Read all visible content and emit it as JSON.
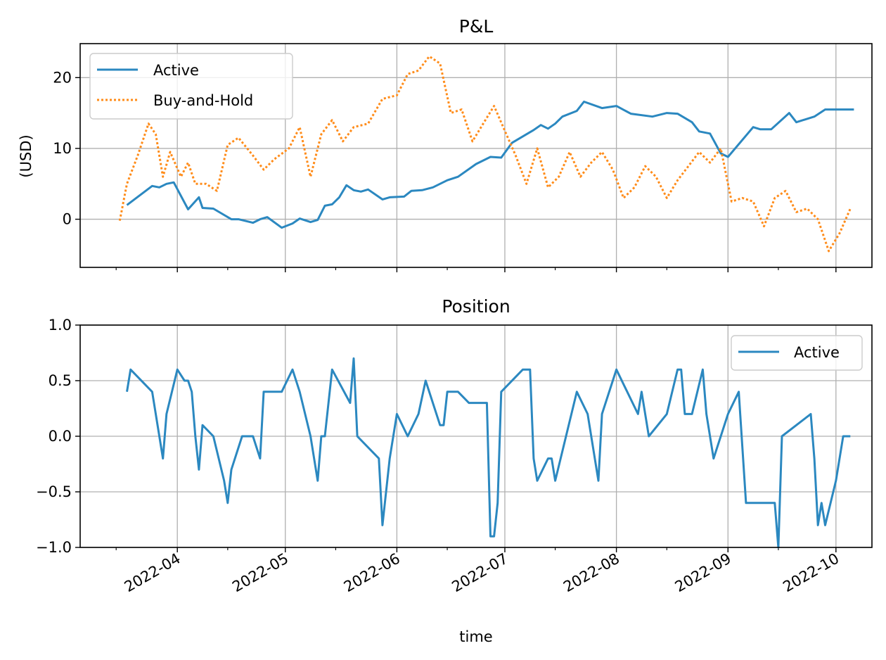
{
  "figure": {
    "xlabel": "time",
    "date_ticks": [
      "2022-04",
      "2022-05",
      "2022-06",
      "2022-07",
      "2022-08",
      "2022-09",
      "2022-10"
    ],
    "date_tick_values": [
      "2022-04-01",
      "2022-05-01",
      "2022-06-01",
      "2022-07-01",
      "2022-08-01",
      "2022-09-01",
      "2022-10-01"
    ]
  },
  "colors": {
    "active": "#2b88c0",
    "buy_and_hold": "#ff8c1a",
    "grid": "#b0b0b0"
  },
  "chart_data": [
    {
      "type": "line",
      "title": "P&L",
      "ylabel": "(USD)",
      "xlim": [
        "2022-03-05",
        "2022-10-11"
      ],
      "ylim": [
        -6.8,
        24.8
      ],
      "yticks": [
        0,
        10,
        20
      ],
      "ytick_labels": [
        "0",
        "10",
        "20"
      ],
      "grid": true,
      "legend": "upper left",
      "series": [
        {
          "name": "Active",
          "style": "solid",
          "x": [
            "2022-03-18",
            "2022-03-25",
            "2022-03-27",
            "2022-03-29",
            "2022-03-31",
            "2022-04-04",
            "2022-04-07",
            "2022-04-08",
            "2022-04-11",
            "2022-04-14",
            "2022-04-16",
            "2022-04-18",
            "2022-04-22",
            "2022-04-24",
            "2022-04-26",
            "2022-04-30",
            "2022-05-03",
            "2022-05-05",
            "2022-05-08",
            "2022-05-10",
            "2022-05-12",
            "2022-05-14",
            "2022-05-16",
            "2022-05-18",
            "2022-05-20",
            "2022-05-22",
            "2022-05-24",
            "2022-05-28",
            "2022-05-30",
            "2022-06-03",
            "2022-06-05",
            "2022-06-08",
            "2022-06-11",
            "2022-06-15",
            "2022-06-18",
            "2022-06-23",
            "2022-06-27",
            "2022-06-30",
            "2022-07-03",
            "2022-07-07",
            "2022-07-09",
            "2022-07-11",
            "2022-07-13",
            "2022-07-15",
            "2022-07-17",
            "2022-07-21",
            "2022-07-23",
            "2022-07-28",
            "2022-08-01",
            "2022-08-05",
            "2022-08-11",
            "2022-08-15",
            "2022-08-18",
            "2022-08-22",
            "2022-08-24",
            "2022-08-27",
            "2022-08-30",
            "2022-09-01",
            "2022-09-08",
            "2022-09-10",
            "2022-09-13",
            "2022-09-18",
            "2022-09-20",
            "2022-09-25",
            "2022-09-28",
            "2022-10-02",
            "2022-10-06"
          ],
          "y": [
            2.0,
            4.7,
            4.5,
            5.0,
            5.2,
            1.4,
            3.1,
            1.6,
            1.5,
            0.6,
            0.0,
            0.0,
            -0.5,
            0.0,
            0.3,
            -1.2,
            -0.6,
            0.1,
            -0.4,
            -0.1,
            1.9,
            2.1,
            3.1,
            4.8,
            4.1,
            3.9,
            4.2,
            2.8,
            3.1,
            3.2,
            4.0,
            4.1,
            4.5,
            5.5,
            6.0,
            7.8,
            8.8,
            8.7,
            10.8,
            12.0,
            12.6,
            13.3,
            12.8,
            13.5,
            14.5,
            15.3,
            16.6,
            15.7,
            16.0,
            14.9,
            14.5,
            15.0,
            14.9,
            13.7,
            12.4,
            12.1,
            9.3,
            8.8,
            13.0,
            12.7,
            12.7,
            15.0,
            13.7,
            14.5,
            15.5,
            15.5,
            15.5
          ]
        },
        {
          "name": "Buy-and-Hold",
          "style": "dotted",
          "x": [
            "2022-03-16",
            "2022-03-18",
            "2022-03-21",
            "2022-03-24",
            "2022-03-26",
            "2022-03-28",
            "2022-03-30",
            "2022-04-02",
            "2022-04-04",
            "2022-04-06",
            "2022-04-09",
            "2022-04-12",
            "2022-04-15",
            "2022-04-18",
            "2022-04-22",
            "2022-04-25",
            "2022-04-28",
            "2022-05-02",
            "2022-05-05",
            "2022-05-08",
            "2022-05-11",
            "2022-05-14",
            "2022-05-17",
            "2022-05-20",
            "2022-05-24",
            "2022-05-28",
            "2022-06-01",
            "2022-06-04",
            "2022-06-07",
            "2022-06-10",
            "2022-06-13",
            "2022-06-16",
            "2022-06-19",
            "2022-06-22",
            "2022-06-25",
            "2022-06-28",
            "2022-07-01",
            "2022-07-04",
            "2022-07-07",
            "2022-07-10",
            "2022-07-13",
            "2022-07-16",
            "2022-07-19",
            "2022-07-22",
            "2022-07-25",
            "2022-07-28",
            "2022-07-31",
            "2022-08-03",
            "2022-08-06",
            "2022-08-09",
            "2022-08-12",
            "2022-08-15",
            "2022-08-18",
            "2022-08-21",
            "2022-08-24",
            "2022-08-27",
            "2022-08-30",
            "2022-09-02",
            "2022-09-05",
            "2022-09-08",
            "2022-09-11",
            "2022-09-14",
            "2022-09-17",
            "2022-09-20",
            "2022-09-23",
            "2022-09-26",
            "2022-09-29",
            "2022-10-02",
            "2022-10-05"
          ],
          "y": [
            -0.2,
            5.0,
            9.0,
            13.5,
            12.0,
            6.0,
            9.5,
            6.0,
            8.0,
            5.0,
            5.0,
            4.0,
            10.5,
            11.5,
            9.0,
            7.0,
            8.5,
            10.0,
            13.0,
            6.0,
            12.0,
            14.0,
            11.0,
            13.0,
            13.5,
            17.0,
            17.5,
            20.5,
            21.0,
            23.0,
            22.0,
            15.0,
            15.5,
            11.0,
            13.5,
            16.0,
            12.5,
            9.0,
            5.0,
            10.0,
            4.5,
            6.0,
            9.5,
            6.0,
            8.0,
            9.5,
            7.0,
            3.0,
            4.5,
            7.5,
            6.0,
            3.0,
            5.5,
            7.5,
            9.5,
            8.0,
            10.0,
            2.5,
            3.0,
            2.5,
            -1.0,
            3.0,
            4.0,
            1.0,
            1.5,
            0.0,
            -4.5,
            -2.0,
            1.5
          ]
        }
      ]
    },
    {
      "type": "line",
      "title": "Position",
      "ylabel": "",
      "xlim": [
        "2022-03-05",
        "2022-10-11"
      ],
      "ylim": [
        -1.0,
        1.0
      ],
      "yticks": [
        -1.0,
        -0.5,
        0.0,
        0.5,
        1.0
      ],
      "ytick_labels": [
        "−1.0",
        "−0.5",
        "0.0",
        "0.5",
        "1.0"
      ],
      "grid": true,
      "legend": "upper right",
      "series": [
        {
          "name": "Active",
          "style": "solid",
          "x": [
            "2022-03-18",
            "2022-03-19",
            "2022-03-25",
            "2022-03-28",
            "2022-03-29",
            "2022-04-01",
            "2022-04-03",
            "2022-04-04",
            "2022-04-05",
            "2022-04-06",
            "2022-04-07",
            "2022-04-08",
            "2022-04-11",
            "2022-04-14",
            "2022-04-15",
            "2022-04-16",
            "2022-04-19",
            "2022-04-22",
            "2022-04-24",
            "2022-04-25",
            "2022-04-26",
            "2022-04-29",
            "2022-04-30",
            "2022-05-03",
            "2022-05-05",
            "2022-05-08",
            "2022-05-10",
            "2022-05-11",
            "2022-05-12",
            "2022-05-14",
            "2022-05-19",
            "2022-05-20",
            "2022-05-21",
            "2022-05-27",
            "2022-05-28",
            "2022-05-30",
            "2022-06-01",
            "2022-06-04",
            "2022-06-07",
            "2022-06-09",
            "2022-06-13",
            "2022-06-14",
            "2022-06-15",
            "2022-06-18",
            "2022-06-21",
            "2022-06-26",
            "2022-06-27",
            "2022-06-28",
            "2022-06-29",
            "2022-06-30",
            "2022-07-06",
            "2022-07-08",
            "2022-07-09",
            "2022-07-10",
            "2022-07-13",
            "2022-07-14",
            "2022-07-15",
            "2022-07-21",
            "2022-07-24",
            "2022-07-27",
            "2022-07-28",
            "2022-08-01",
            "2022-08-07",
            "2022-08-08",
            "2022-08-10",
            "2022-08-15",
            "2022-08-18",
            "2022-08-19",
            "2022-08-20",
            "2022-08-22",
            "2022-08-25",
            "2022-08-26",
            "2022-08-28",
            "2022-09-01",
            "2022-09-04",
            "2022-09-06",
            "2022-09-14",
            "2022-09-15",
            "2022-09-16",
            "2022-09-24",
            "2022-09-25",
            "2022-09-26",
            "2022-09-27",
            "2022-09-28",
            "2022-10-01",
            "2022-10-03",
            "2022-10-05"
          ],
          "y": [
            0.4,
            0.6,
            0.4,
            -0.2,
            0.2,
            0.6,
            0.5,
            0.5,
            0.4,
            0.0,
            -0.3,
            0.1,
            0.0,
            -0.4,
            -0.6,
            -0.3,
            0.0,
            0.0,
            -0.2,
            0.4,
            0.4,
            0.4,
            0.4,
            0.6,
            0.4,
            0.0,
            -0.4,
            0.0,
            0.0,
            0.6,
            0.3,
            0.7,
            0.0,
            -0.2,
            -0.8,
            -0.2,
            0.2,
            0.0,
            0.2,
            0.5,
            0.1,
            0.1,
            0.4,
            0.4,
            0.3,
            0.3,
            -0.9,
            -0.9,
            -0.6,
            0.4,
            0.6,
            0.6,
            -0.2,
            -0.4,
            -0.2,
            -0.2,
            -0.4,
            0.4,
            0.2,
            -0.4,
            0.2,
            0.6,
            0.2,
            0.4,
            0.0,
            0.2,
            0.6,
            0.6,
            0.2,
            0.2,
            0.6,
            0.2,
            -0.2,
            0.2,
            0.4,
            -0.6,
            -0.6,
            -1.0,
            0.0,
            0.2,
            -0.2,
            -0.8,
            -0.6,
            -0.8,
            -0.4,
            0.0,
            0.0
          ]
        }
      ]
    }
  ]
}
